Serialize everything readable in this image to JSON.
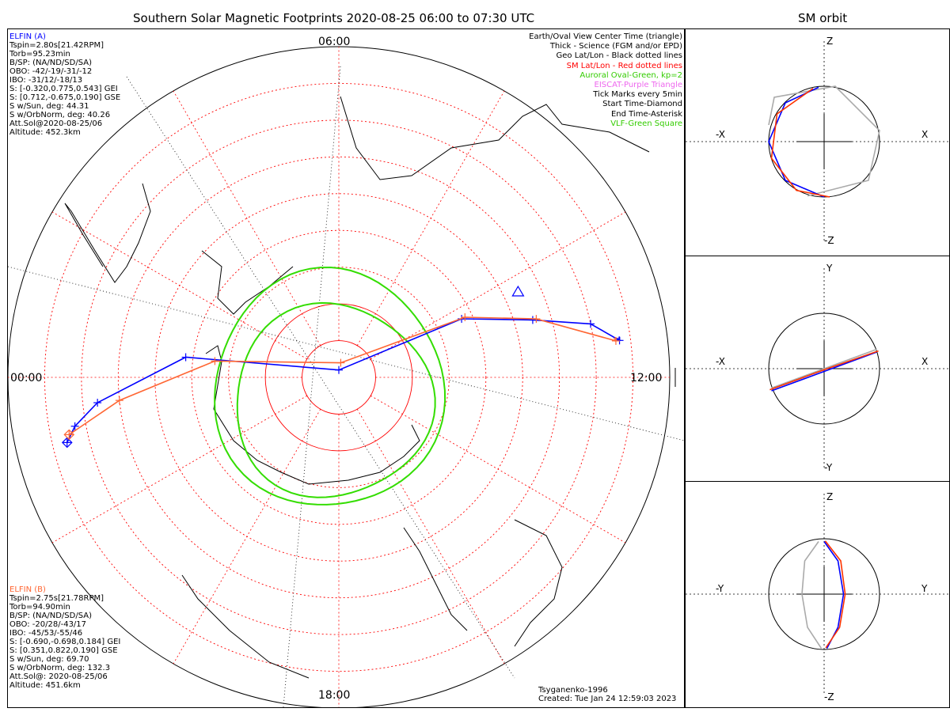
{
  "titles": {
    "main": "Southern Solar Magnetic Footprints 2020-08-25 06:00 to 07:30 UTC",
    "orbit": "SM orbit"
  },
  "clock": {
    "top": "06:00",
    "left": "00:00",
    "right": "12:00",
    "bottom": "18:00"
  },
  "elfin_a": {
    "name": "ELFIN (A)",
    "color": "#0000ff",
    "lines": [
      "Tspin=2.80s[21.42RPM]",
      "Torb=95.23min",
      "B/SP: (NA/ND/SD/SA)",
      "OBO: -42/-19/-31/-12",
      "IBO: -31/12/-18/13",
      "S: [-0.320,0.775,0.543] GEI",
      "S: [0.712,-0.675,0.190] GSE",
      "S w/Sun, deg: 44.31",
      "S w/OrbNorm, deg: 40.26",
      "Att.Sol@2020-08-25/06",
      "Altitude: 452.3km"
    ]
  },
  "elfin_b": {
    "name": "ELFIN (B)",
    "color": "#ff6633",
    "lines": [
      "Tspin=2.75s[21.78RPM]",
      "Torb=94.90min",
      "B/SP: (NA/ND/SD/SA)",
      "OBO: -20/28/-43/17",
      "IBO: -45/53/-55/46",
      "S: [-0.690,-0.698,0.184] GEI",
      "S: [0.351,0.822,0.190] GSE",
      "S w/Sun, deg: 69.70",
      "S w/OrbNorm, deg: 132.3",
      "Att.Sol@: 2020-08-25/06",
      "Altitude: 451.6km"
    ]
  },
  "legend": [
    {
      "text": "Earth/Oval View Center Time (triangle)",
      "color": "#000000"
    },
    {
      "text": "Thick - Science (FGM and/or EPD)",
      "color": "#000000"
    },
    {
      "text": "Geo Lat/Lon - Black dotted lines",
      "color": "#000000"
    },
    {
      "text": "SM Lat/Lon - Red dotted lines",
      "color": "#ff0000"
    },
    {
      "text": "Auroral Oval-Green, kp=2",
      "color": "#33cc00"
    },
    {
      "text": "EISCAT-Purple Triangle",
      "color": "#ee66ee"
    },
    {
      "text": "Tick Marks every 5min",
      "color": "#000000"
    },
    {
      "text": "Start Time-Diamond",
      "color": "#000000"
    },
    {
      "text": "End Time-Asterisk",
      "color": "#000000"
    },
    {
      "text": "VLF-Green Square",
      "color": "#33cc00"
    }
  ],
  "footer": {
    "model": "Tsyganenko-1996",
    "created": "Created: Tue Jan 24 12:59:03 2023"
  },
  "orbit_panels": [
    {
      "h_neg": "-X",
      "h_pos": "X",
      "v_pos": "Z",
      "v_neg": "-Z"
    },
    {
      "h_neg": "-X",
      "h_pos": "X",
      "v_pos": "Y",
      "v_neg": "-Y"
    },
    {
      "h_neg": "-Y",
      "h_pos": "Y",
      "v_pos": "Z",
      "v_neg": "-Z"
    }
  ],
  "chart_data": {
    "type": "polar",
    "projection": "south polar, SM coordinates, MLT around rim",
    "mlt_labels": [
      "06:00",
      "12:00",
      "18:00",
      "00:00"
    ],
    "sm_lat_rings_deg": [
      -90,
      -80,
      -70,
      -60,
      -50,
      -40,
      -30,
      -20,
      -10,
      0
    ],
    "series": [
      {
        "name": "ELFIN (A)",
        "color": "#0000ff",
        "mlt": [
          23.1,
          23.3,
          23.6,
          0.5,
          6.0,
          10.3,
          10.9,
          11.2,
          11.5
        ],
        "sm_lat": [
          -14,
          -17,
          -24,
          -48,
          -88,
          -53,
          -35,
          -20,
          -13
        ]
      },
      {
        "name": "ELFIN (B)",
        "color": "#ff6633",
        "mlt": [
          23.2,
          23.6,
          0.5,
          6.5,
          10.3,
          10.9,
          11.5
        ],
        "sm_lat": [
          -15,
          -30,
          -56,
          -86,
          -52,
          -34,
          -14
        ]
      }
    ],
    "auroral_oval_kp": 2
  }
}
